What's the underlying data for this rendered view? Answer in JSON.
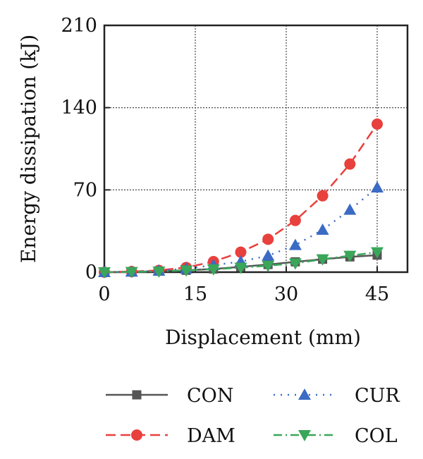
{
  "chart_data": {
    "type": "line",
    "xlabel": "Displacement (mm)",
    "ylabel": "Energy dissipation (kJ)",
    "xlim": [
      0,
      50
    ],
    "ylim": [
      0,
      210
    ],
    "xticks": [
      0,
      15,
      30,
      45
    ],
    "yticks": [
      0,
      70,
      140,
      210
    ],
    "grid": true,
    "legend_position": "bottom",
    "x": [
      0,
      4.5,
      9,
      13.5,
      18,
      22.5,
      27,
      31.5,
      36,
      40.5,
      45
    ],
    "series": [
      {
        "name": "CON",
        "color": "#555555",
        "line": "solid",
        "marker": "square",
        "values": [
          0,
          0.3,
          0.8,
          1.6,
          2.7,
          4.5,
          6.5,
          8.8,
          11,
          13,
          14.5
        ]
      },
      {
        "name": "DAM",
        "color": "#e8403c",
        "line": "dashed",
        "marker": "circle",
        "values": [
          0,
          0.5,
          1.5,
          4,
          9,
          17,
          28,
          44,
          65,
          92,
          126
        ]
      },
      {
        "name": "CUR",
        "color": "#3b6bc4",
        "line": "dotted",
        "marker": "triangle-up",
        "values": [
          0,
          0.4,
          1.2,
          3,
          6,
          9,
          14,
          23,
          36,
          53,
          72
        ]
      },
      {
        "name": "COL",
        "color": "#3aa65a",
        "line": "dashdot",
        "marker": "triangle-down",
        "values": [
          0,
          0.2,
          0.6,
          1.5,
          2.5,
          3.8,
          5.5,
          7.5,
          11,
          14,
          17
        ]
      }
    ]
  }
}
